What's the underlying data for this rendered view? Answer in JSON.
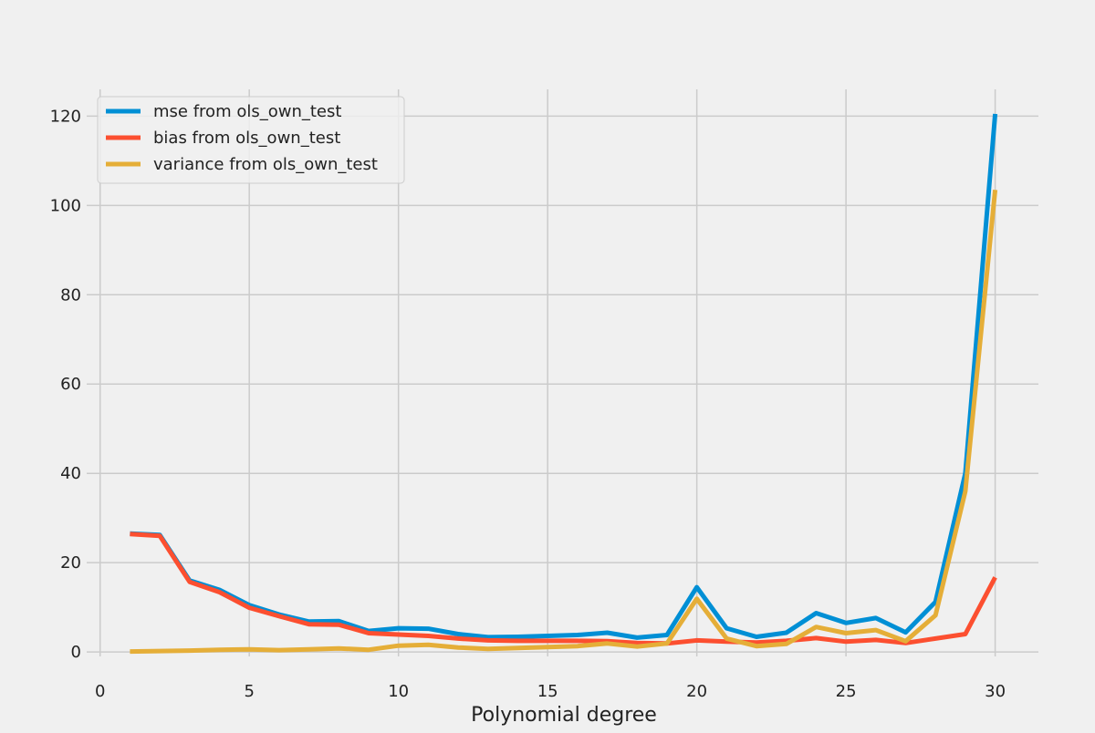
{
  "chart_data": {
    "type": "line",
    "xlabel": "Polynomial degree",
    "ylabel": "",
    "xlim": [
      -0.45,
      31.45
    ],
    "ylim": [
      -1,
      126
    ],
    "x_ticks": [
      0,
      5,
      10,
      15,
      20,
      25,
      30
    ],
    "y_ticks": [
      0,
      20,
      40,
      60,
      80,
      100,
      120
    ],
    "grid": true,
    "legend_position": "top-left",
    "x": [
      1,
      2,
      3,
      4,
      5,
      6,
      7,
      8,
      9,
      10,
      11,
      12,
      13,
      14,
      15,
      16,
      17,
      18,
      19,
      20,
      21,
      22,
      23,
      24,
      25,
      26,
      27,
      28,
      29,
      30
    ],
    "series": [
      {
        "name": "mse from ols_own_test",
        "color": "#008fd5",
        "values": [
          26.5,
          26.2,
          16.0,
          13.9,
          10.5,
          8.4,
          6.8,
          6.9,
          4.7,
          5.3,
          5.2,
          4.0,
          3.3,
          3.4,
          3.6,
          3.8,
          4.3,
          3.2,
          3.8,
          14.5,
          5.3,
          3.4,
          4.3,
          8.7,
          6.5,
          7.6,
          4.4,
          11.2,
          40.0,
          120.5
        ]
      },
      {
        "name": "bias from ols_own_test",
        "color": "#fc4f30",
        "values": [
          26.4,
          26.0,
          15.7,
          13.4,
          9.9,
          8.0,
          6.2,
          6.1,
          4.2,
          3.9,
          3.6,
          3.0,
          2.6,
          2.5,
          2.5,
          2.5,
          2.4,
          2.0,
          1.9,
          2.6,
          2.3,
          2.1,
          2.5,
          3.1,
          2.3,
          2.7,
          2.0,
          3.0,
          4.0,
          16.7
        ]
      },
      {
        "name": "variance from ols_own_test",
        "color": "#e5ae38",
        "values": [
          0.1,
          0.2,
          0.3,
          0.5,
          0.6,
          0.4,
          0.6,
          0.8,
          0.5,
          1.4,
          1.6,
          1.0,
          0.7,
          0.9,
          1.1,
          1.3,
          1.9,
          1.2,
          1.9,
          11.9,
          3.0,
          1.3,
          1.8,
          5.6,
          4.2,
          4.9,
          2.4,
          8.2,
          36.0,
          103.5
        ]
      }
    ]
  }
}
